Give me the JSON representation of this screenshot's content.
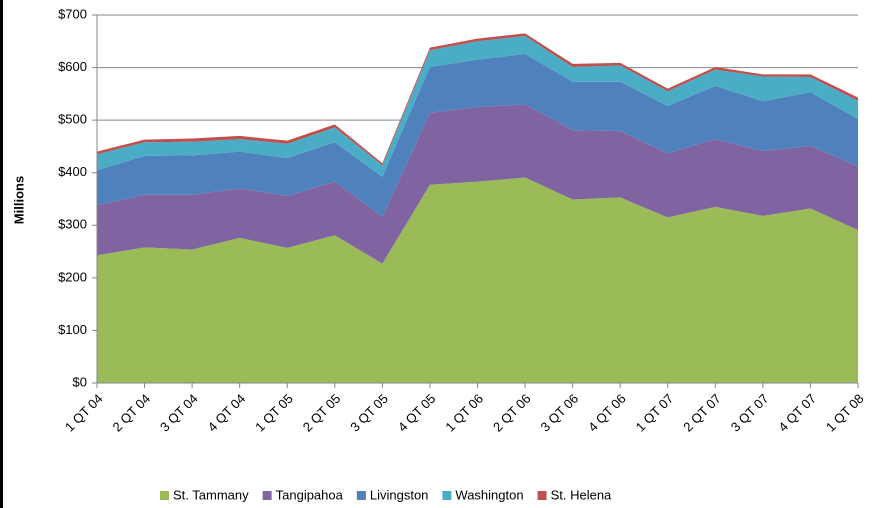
{
  "chart_data": {
    "type": "stacked_area",
    "y_label": "Millions",
    "categories": [
      "1 QT 04",
      "2 QT 04",
      "3 QT 04",
      "4 QT 04",
      "1 QT 05",
      "2 QT 05",
      "3 QT 05",
      "4 QT 05",
      "1 QT 06",
      "2 QT 06",
      "3 QT 06",
      "4 QT 06",
      "1 QT 07",
      "2 QT 07",
      "3 QT 07",
      "4 QT 07",
      "1 QT 08"
    ],
    "series": [
      {
        "name": "St. Tammany",
        "color": "#9bbb59",
        "values": [
          243,
          258,
          254,
          276,
          257,
          281,
          227,
          377,
          383,
          391,
          349,
          353,
          315,
          335,
          318,
          332,
          291
        ]
      },
      {
        "name": "Tangipahoa",
        "color": "#8064a2",
        "values": [
          95,
          100,
          104,
          94,
          99,
          102,
          89,
          137,
          142,
          139,
          132,
          126,
          122,
          129,
          123,
          119,
          121
        ]
      },
      {
        "name": "Livingston",
        "color": "#4f81bd",
        "values": [
          67,
          74,
          75,
          70,
          72,
          75,
          76,
          87,
          90,
          96,
          92,
          94,
          90,
          101,
          95,
          102,
          90
        ]
      },
      {
        "name": "Washington",
        "color": "#4bacc6",
        "values": [
          30,
          26,
          26,
          24,
          27,
          28,
          22,
          32,
          35,
          34,
          28,
          31,
          28,
          31,
          47,
          29,
          35
        ]
      },
      {
        "name": "St. Helena",
        "color": "#c0504d",
        "values": [
          5,
          5,
          6,
          6,
          6,
          6,
          4,
          5,
          5,
          5,
          6,
          5,
          5,
          5,
          4,
          5,
          6
        ]
      }
    ],
    "ylim": [
      0,
      700
    ],
    "yticks": [
      {
        "value": 0,
        "label": "$0"
      },
      {
        "value": 100,
        "label": "$100"
      },
      {
        "value": 200,
        "label": "$200"
      },
      {
        "value": 300,
        "label": "$300"
      },
      {
        "value": 400,
        "label": "$400"
      },
      {
        "value": 500,
        "label": "$500"
      },
      {
        "value": 600,
        "label": "$600"
      },
      {
        "value": 700,
        "label": "$700"
      }
    ],
    "grid": true,
    "legend": "bottom"
  }
}
